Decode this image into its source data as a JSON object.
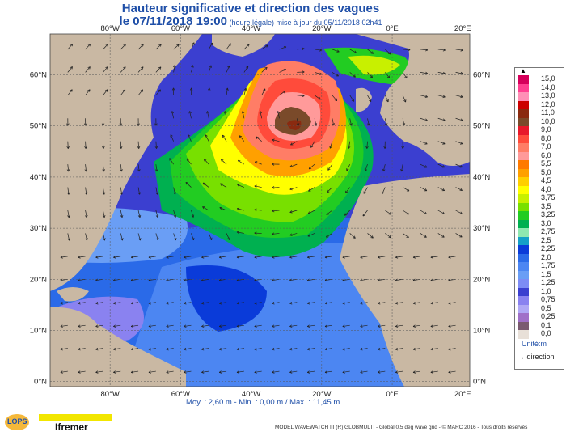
{
  "title": {
    "line1": "Hauteur significative et direction des vagues",
    "line2_main": "le 07/11/2018 19:00",
    "line2_small": " (heure légale) mise à jour du 05/11/2018 02h41"
  },
  "map": {
    "lon_labels": [
      "80°W",
      "60°W",
      "40°W",
      "20°W",
      "0°E",
      "20°E"
    ],
    "lat_labels": [
      "60°N",
      "50°N",
      "40°N",
      "30°N",
      "20°N",
      "10°N",
      "0°N"
    ],
    "lon_range": [
      -97,
      22
    ],
    "lat_range": [
      -1,
      68
    ],
    "storm_center": {
      "lon": -29,
      "lat": 51.5
    }
  },
  "legend": {
    "top_marker": "▲",
    "entries": [
      {
        "label": "15,0",
        "color": "#d6005b"
      },
      {
        "label": "14,0",
        "color": "#ff3f90"
      },
      {
        "label": "13,0",
        "color": "#ff8fb6"
      },
      {
        "label": "12,0",
        "color": "#cc0000"
      },
      {
        "label": "11,0",
        "color": "#8a2a10"
      },
      {
        "label": "10,0",
        "color": "#7a4a2a"
      },
      {
        "label": "9,0",
        "color": "#e8182a"
      },
      {
        "label": "8,0",
        "color": "#ff4b3b"
      },
      {
        "label": "7,0",
        "color": "#ff7d66"
      },
      {
        "label": "6,0",
        "color": "#ff9a9a"
      },
      {
        "label": "5,5",
        "color": "#ff7a00"
      },
      {
        "label": "5,0",
        "color": "#ffa000"
      },
      {
        "label": "4,5",
        "color": "#ffcf00"
      },
      {
        "label": "4,0",
        "color": "#ffff00"
      },
      {
        "label": "3,75",
        "color": "#c8f000"
      },
      {
        "label": "3,5",
        "color": "#78e000"
      },
      {
        "label": "3,25",
        "color": "#22cc22"
      },
      {
        "label": "3,0",
        "color": "#00b050"
      },
      {
        "label": "2,75",
        "color": "#8fe8b0"
      },
      {
        "label": "2,5",
        "color": "#14a0c8"
      },
      {
        "label": "2,25",
        "color": "#0a3bd9"
      },
      {
        "label": "2,0",
        "color": "#2a6ae8"
      },
      {
        "label": "1,75",
        "color": "#4c86f2"
      },
      {
        "label": "1,5",
        "color": "#6a9ef5"
      },
      {
        "label": "1,25",
        "color": "#7d8cf5"
      },
      {
        "label": "1,0",
        "color": "#3b3fd0"
      },
      {
        "label": "0,75",
        "color": "#8a82f0"
      },
      {
        "label": "0,5",
        "color": "#b0a8f5"
      },
      {
        "label": "0,25",
        "color": "#a070c8"
      },
      {
        "label": "0,1",
        "color": "#7a5a70"
      },
      {
        "label": "0,0",
        "color": "#e8e0d8"
      }
    ],
    "unit": "Unité:m",
    "direction": "→ direction"
  },
  "stats": "Moy. : 2,60 m   -   Min. : 0,00 m / Max. : 11,45 m",
  "footer": "MODEL WAVEWATCH III (R) GLOBMULTI - Global 0.5 deg wave grid - © MARC 2016 - Tous droits réservés",
  "logos": {
    "lops": "LOPS",
    "ifremer": "Ifremer"
  },
  "colors": {
    "land": "#c9b8a3",
    "sea_bg": "#3b3fd0",
    "title": "#1f4fa8"
  }
}
